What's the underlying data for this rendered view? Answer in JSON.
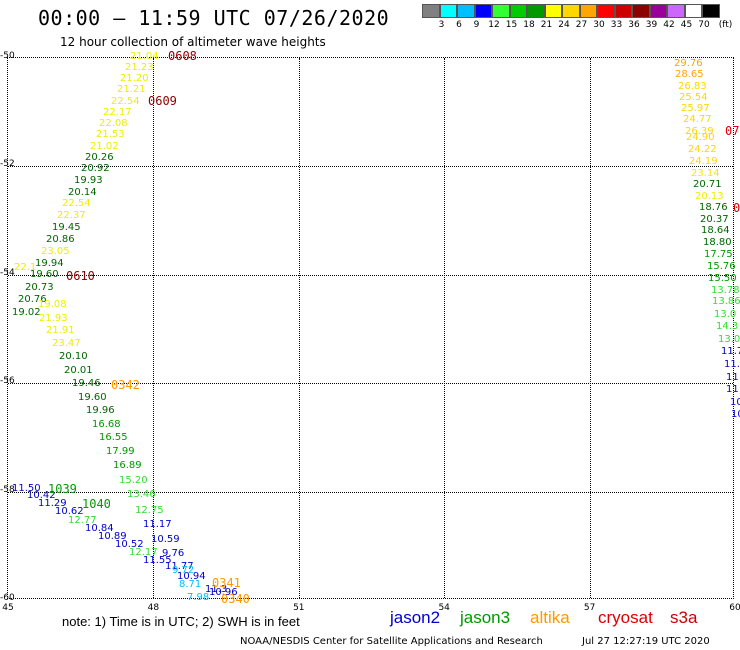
{
  "title": "00:00 – 11:59 UTC 07/26/2020",
  "subtitle": "12 hour collection of altimeter wave heights",
  "legend": {
    "unit": "(ft)",
    "colors": [
      "#808080",
      "#00ffff",
      "#00bfff",
      "#0000ff",
      "#33ff33",
      "#00cc00",
      "#009900",
      "#ffff00",
      "#ffd700",
      "#ffa500",
      "#ff0000",
      "#cc0000",
      "#8b0000",
      "#990099",
      "#cc66ff",
      "#ffffff",
      "#000000"
    ],
    "labels": [
      "3",
      "6",
      "9",
      "12",
      "15",
      "18",
      "21",
      "24",
      "27",
      "30",
      "33",
      "36",
      "39",
      "42",
      "45",
      "70"
    ]
  },
  "axes": {
    "y_labels": [
      "-50",
      "-52",
      "-54",
      "-56",
      "-58",
      "-60"
    ],
    "x_labels": [
      "45",
      "48",
      "51",
      "54",
      "57",
      "60"
    ]
  },
  "note": "note:  1) Time is in UTC;  2) SWH is in feet",
  "satellites": [
    {
      "name": "jason2",
      "color": "#0000cc"
    },
    {
      "name": "jason3",
      "color": "#009900"
    },
    {
      "name": "altika",
      "color": "#ff9900"
    },
    {
      "name": "cryosat",
      "color": "#dd0000"
    },
    {
      "name": "s3a",
      "color": "#cc0000"
    }
  ],
  "credit": "NOAA/NESDIS Center for Satellite Applications and Research",
  "timestamp": "Jul 27 12:27:19 UTC 2020",
  "time_labels": [
    {
      "text": "0608",
      "color": "#8b0000"
    },
    {
      "text": "0609",
      "color": "#8b0000"
    },
    {
      "text": "0610",
      "color": "#8b0000"
    },
    {
      "text": "0342",
      "color": "#ff9900"
    },
    {
      "text": "1039",
      "color": "#009900"
    },
    {
      "text": "1040",
      "color": "#009900"
    },
    {
      "text": "0341",
      "color": "#ff9900"
    },
    {
      "text": "0340",
      "color": "#ff9900"
    },
    {
      "text": "07",
      "color": "#dd0000"
    },
    {
      "text": "0",
      "color": "#dd0000"
    }
  ],
  "observations": [
    {
      "v": "21.04",
      "c": "#eeee00"
    },
    {
      "v": "21.23",
      "c": "#eeee00"
    },
    {
      "v": "21.20",
      "c": "#eeee00"
    },
    {
      "v": "21.21",
      "c": "#eeee00"
    },
    {
      "v": "22.54",
      "c": "#eeee00"
    },
    {
      "v": "22.17",
      "c": "#eeee00"
    },
    {
      "v": "22.08",
      "c": "#eeee00"
    },
    {
      "v": "21.53",
      "c": "#eeee00"
    },
    {
      "v": "21.02",
      "c": "#eeee00"
    },
    {
      "v": "20.26",
      "c": "#006600"
    },
    {
      "v": "20.92",
      "c": "#006600"
    },
    {
      "v": "19.93",
      "c": "#006600"
    },
    {
      "v": "20.14",
      "c": "#006600"
    },
    {
      "v": "22.54",
      "c": "#eeee00"
    },
    {
      "v": "22.37",
      "c": "#eeee00"
    },
    {
      "v": "19.45",
      "c": "#006600"
    },
    {
      "v": "20.86",
      "c": "#006600"
    },
    {
      "v": "23.05",
      "c": "#eeee00"
    },
    {
      "v": "19.94",
      "c": "#006600"
    },
    {
      "v": "22.1",
      "c": "#eeee00"
    },
    {
      "v": "19.60",
      "c": "#006600"
    },
    {
      "v": "20.73",
      "c": "#006600"
    },
    {
      "v": "20.76",
      "c": "#006600"
    },
    {
      "v": "19.08",
      "c": "#eeee00"
    },
    {
      "v": "19.02",
      "c": "#006600"
    },
    {
      "v": "21.93",
      "c": "#eeee00"
    },
    {
      "v": "21.91",
      "c": "#eeee00"
    },
    {
      "v": "23.47",
      "c": "#eeee00"
    },
    {
      "v": "20.10",
      "c": "#006600"
    },
    {
      "v": "20.01",
      "c": "#006600"
    },
    {
      "v": "19.46",
      "c": "#006600"
    },
    {
      "v": "19.60",
      "c": "#006600"
    },
    {
      "v": "19.96",
      "c": "#006600"
    },
    {
      "v": "16.68",
      "c": "#009900"
    },
    {
      "v": "16.55",
      "c": "#009900"
    },
    {
      "v": "17.99",
      "c": "#009900"
    },
    {
      "v": "16.89",
      "c": "#009900"
    },
    {
      "v": "15.20",
      "c": "#33dd33"
    },
    {
      "v": "11.50",
      "c": "#0000cc"
    },
    {
      "v": "10.42",
      "c": "#0000cc"
    },
    {
      "v": "11.29",
      "c": "#0000cc"
    },
    {
      "v": "10.62",
      "c": "#0000cc"
    },
    {
      "v": "12.77",
      "c": "#33dd33"
    },
    {
      "v": "10.84",
      "c": "#0000cc"
    },
    {
      "v": "10.89",
      "c": "#0000cc"
    },
    {
      "v": "10.52",
      "c": "#0000cc"
    },
    {
      "v": "12.17",
      "c": "#33dd33"
    },
    {
      "v": "11.55",
      "c": "#0000cc"
    },
    {
      "v": "13.46",
      "c": "#33dd33"
    },
    {
      "v": "12.75",
      "c": "#33dd33"
    },
    {
      "v": "11.17",
      "c": "#0000cc"
    },
    {
      "v": "10.59",
      "c": "#0000cc"
    },
    {
      "v": "9.76",
      "c": "#0000cc"
    },
    {
      "v": "11.77",
      "c": "#0000cc"
    },
    {
      "v": "9.72",
      "c": "#00bfff"
    },
    {
      "v": "10.94",
      "c": "#0000cc"
    },
    {
      "v": "8.71",
      "c": "#00bfff"
    },
    {
      "v": "11.3",
      "c": "#0000cc"
    },
    {
      "v": "10.96",
      "c": "#0000cc"
    },
    {
      "v": "7.98",
      "c": "#00bfff"
    },
    {
      "v": "29.76",
      "c": "#ffa500"
    },
    {
      "v": "28.65",
      "c": "#ffa500"
    },
    {
      "v": "26.83",
      "c": "#ffd700"
    },
    {
      "v": "25.54",
      "c": "#ffd700"
    },
    {
      "v": "25.97",
      "c": "#ffd700"
    },
    {
      "v": "24.77",
      "c": "#ffd700"
    },
    {
      "v": "26.39",
      "c": "#ffd700"
    },
    {
      "v": "24.90",
      "c": "#ffd700"
    },
    {
      "v": "24.22",
      "c": "#ffd700"
    },
    {
      "v": "24.19",
      "c": "#ffd700"
    },
    {
      "v": "23.14",
      "c": "#eeee00"
    },
    {
      "v": "20.71",
      "c": "#006600"
    },
    {
      "v": "20.13",
      "c": "#eeee00"
    },
    {
      "v": "18.76",
      "c": "#006600"
    },
    {
      "v": "20.37",
      "c": "#006600"
    },
    {
      "v": "18.64",
      "c": "#006600"
    },
    {
      "v": "18.80",
      "c": "#006600"
    },
    {
      "v": "17.75",
      "c": "#009900"
    },
    {
      "v": "15.76",
      "c": "#009900"
    },
    {
      "v": "15.50",
      "c": "#009900"
    },
    {
      "v": "13.78",
      "c": "#33dd33"
    },
    {
      "v": "13.86",
      "c": "#33dd33"
    },
    {
      "v": "13.0",
      "c": "#33dd33"
    },
    {
      "v": "14.3",
      "c": "#33dd33"
    },
    {
      "v": "13.0",
      "c": "#33dd33"
    },
    {
      "v": "11.7",
      "c": "#0000cc"
    },
    {
      "v": "11.4",
      "c": "#0000cc"
    },
    {
      "v": "11",
      "c": "#0000cc"
    },
    {
      "v": "11",
      "c": "#0000cc"
    },
    {
      "v": "10",
      "c": "#0000cc"
    },
    {
      "v": "10",
      "c": "#0000cc"
    }
  ]
}
